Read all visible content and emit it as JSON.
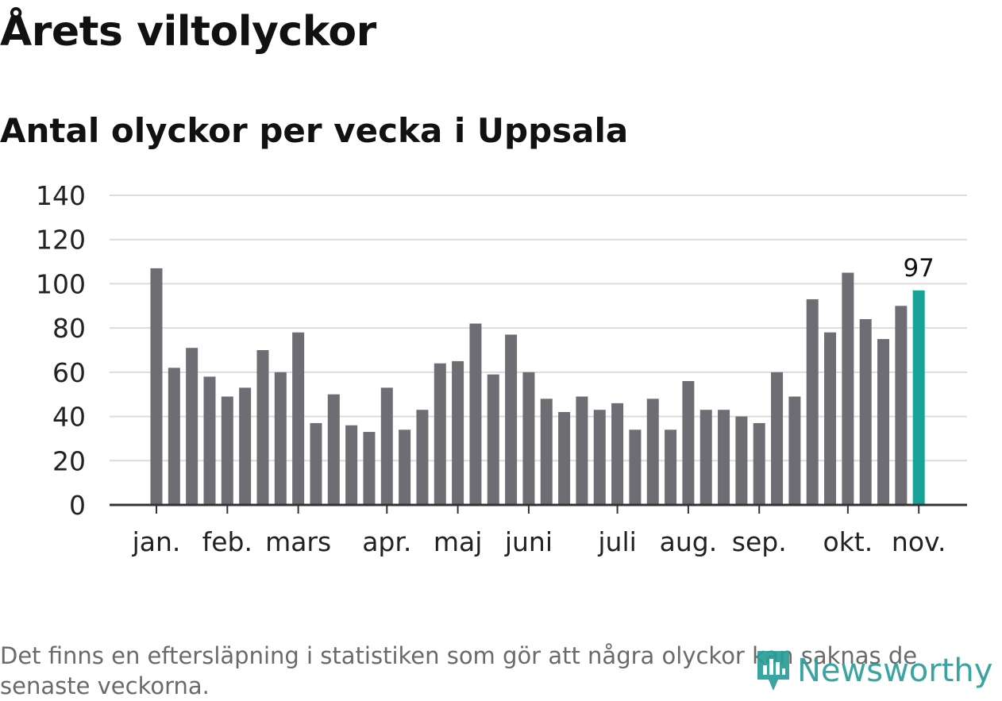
{
  "title": "Årets viltolyckor",
  "subtitle": "Antal olyckor per vecka i Uppsala",
  "footnote": "Det finns en eftersläpning i statistiken som gör att några olyckor kan saknas de senaste veckorna.",
  "logo": {
    "text": "Newsworthy",
    "icon": "newsworthy-logo-icon"
  },
  "colors": {
    "bar": "#6e6d73",
    "highlight": "#17a398",
    "grid": "#dcdcdc",
    "axis": "#333333",
    "text": "#222222"
  },
  "chart_data": {
    "type": "bar",
    "title": "Antal olyckor per vecka i Uppsala",
    "xlabel": "",
    "ylabel": "",
    "ylim": [
      0,
      140
    ],
    "yticks": [
      "0",
      "20",
      "40",
      "60",
      "80",
      "100",
      "120",
      "140"
    ],
    "values": [
      107,
      62,
      71,
      58,
      49,
      53,
      70,
      60,
      78,
      37,
      50,
      36,
      33,
      53,
      34,
      43,
      64,
      65,
      82,
      59,
      77,
      60,
      48,
      42,
      49,
      43,
      46,
      34,
      48,
      34,
      56,
      43,
      43,
      40,
      37,
      60,
      49,
      93,
      78,
      105,
      84,
      75,
      90,
      97
    ],
    "highlight_index": 43,
    "highlight_label": "97",
    "months": [
      {
        "label": "jan.",
        "week_index": 0
      },
      {
        "label": "feb.",
        "week_index": 4
      },
      {
        "label": "mars",
        "week_index": 8
      },
      {
        "label": "apr.",
        "week_index": 13
      },
      {
        "label": "maj",
        "week_index": 17
      },
      {
        "label": "juni",
        "week_index": 21
      },
      {
        "label": "juli",
        "week_index": 26
      },
      {
        "label": "aug.",
        "week_index": 30
      },
      {
        "label": "sep.",
        "week_index": 34
      },
      {
        "label": "okt.",
        "week_index": 39
      },
      {
        "label": "nov.",
        "week_index": 43
      }
    ],
    "grid": true
  }
}
